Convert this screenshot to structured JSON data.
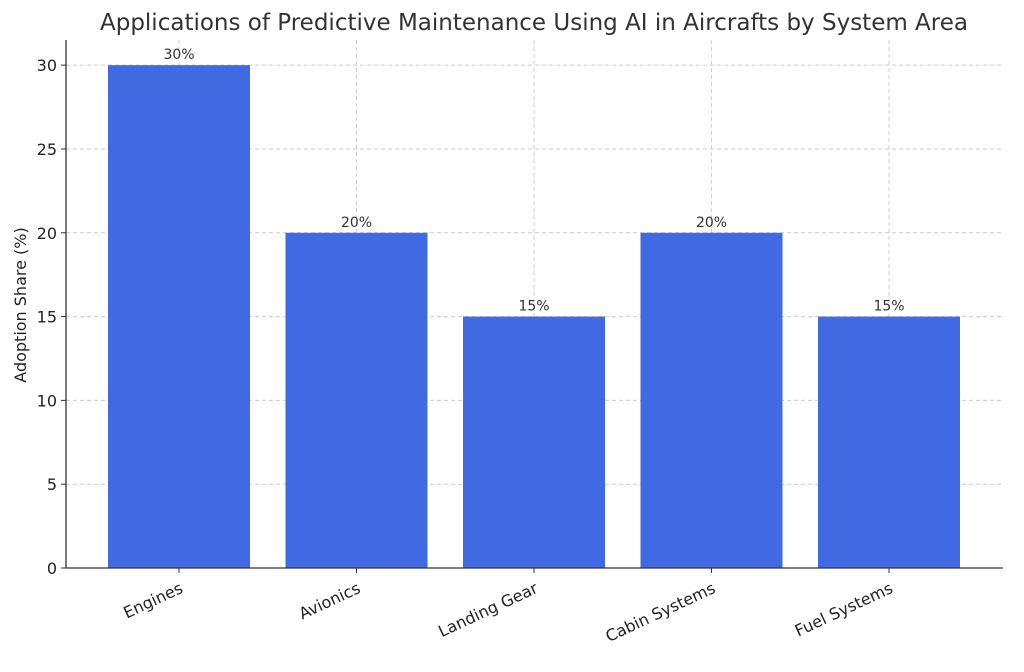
{
  "chart_data": {
    "type": "bar",
    "title": "Applications of Predictive Maintenance Using AI in Aircrafts by System Area",
    "xlabel": "",
    "ylabel": "Adoption Share (%)",
    "categories": [
      "Engines",
      "Avionics",
      "Landing Gear",
      "Cabin Systems",
      "Fuel Systems"
    ],
    "values": [
      30,
      20,
      15,
      20,
      15
    ],
    "data_labels": [
      "30%",
      "20%",
      "15%",
      "20%",
      "15%"
    ],
    "ylim": [
      0,
      31.5
    ],
    "yticks": [
      0,
      5,
      10,
      15,
      20,
      25,
      30
    ],
    "grid": true,
    "bar_color": "#4169e1"
  }
}
